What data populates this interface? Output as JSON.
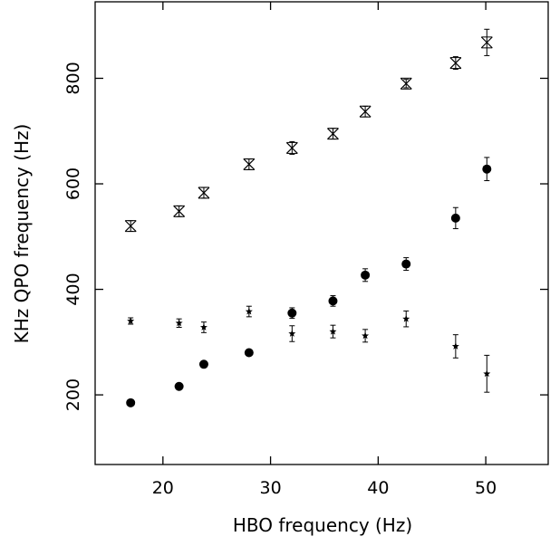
{
  "chart_data": {
    "type": "scatter",
    "title": "",
    "xlabel": "HBO frequency (Hz)",
    "ylabel": "KHz QPO frequency (Hz)",
    "xlim": [
      13.7,
      55.8
    ],
    "ylim": [
      68,
      945
    ],
    "xticks": [
      20,
      30,
      40,
      50
    ],
    "yticks": [
      200,
      400,
      600,
      800
    ],
    "grid": false,
    "legend": "none",
    "series": [
      {
        "marker": "cross-x",
        "points": [
          {
            "x": 17.0,
            "y": 520,
            "err": 10
          },
          {
            "x": 21.5,
            "y": 548,
            "err": 10
          },
          {
            "x": 23.8,
            "y": 583,
            "err": 10
          },
          {
            "x": 28.0,
            "y": 637,
            "err": 10
          },
          {
            "x": 32.0,
            "y": 668,
            "err": 12
          },
          {
            "x": 35.8,
            "y": 695,
            "err": 10
          },
          {
            "x": 38.8,
            "y": 737,
            "err": 10
          },
          {
            "x": 42.6,
            "y": 790,
            "err": 8
          },
          {
            "x": 47.2,
            "y": 829,
            "err": 12
          },
          {
            "x": 50.1,
            "y": 868,
            "err": 25
          }
        ]
      },
      {
        "marker": "filled-circle",
        "points": [
          {
            "x": 17.0,
            "y": 185,
            "err": 0
          },
          {
            "x": 21.5,
            "y": 216,
            "err": 0
          },
          {
            "x": 23.8,
            "y": 258,
            "err": 0
          },
          {
            "x": 28.0,
            "y": 280,
            "err": 0
          },
          {
            "x": 32.0,
            "y": 355,
            "err": 10
          },
          {
            "x": 35.8,
            "y": 378,
            "err": 10
          },
          {
            "x": 38.8,
            "y": 427,
            "err": 12
          },
          {
            "x": 42.6,
            "y": 448,
            "err": 12
          },
          {
            "x": 47.2,
            "y": 535,
            "err": 20
          },
          {
            "x": 50.1,
            "y": 628,
            "err": 22
          }
        ]
      },
      {
        "marker": "star",
        "points": [
          {
            "x": 17.0,
            "y": 340,
            "err": 6
          },
          {
            "x": 21.5,
            "y": 336,
            "err": 8
          },
          {
            "x": 23.8,
            "y": 328,
            "err": 10
          },
          {
            "x": 28.0,
            "y": 358,
            "err": 10
          },
          {
            "x": 32.0,
            "y": 316,
            "err": 15
          },
          {
            "x": 35.8,
            "y": 320,
            "err": 12
          },
          {
            "x": 38.8,
            "y": 312,
            "err": 12
          },
          {
            "x": 42.6,
            "y": 344,
            "err": 15
          },
          {
            "x": 47.2,
            "y": 292,
            "err": 22
          },
          {
            "x": 50.1,
            "y": 240,
            "err": 35
          }
        ]
      }
    ]
  }
}
